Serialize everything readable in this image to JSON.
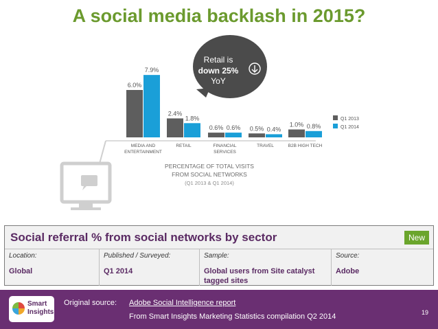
{
  "title": "A social media backlash in 2015?",
  "chart_data": {
    "type": "bar",
    "categories": [
      "MEDIA AND ENTERTAINMENT",
      "RETAIL",
      "FINANCIAL SERVICES",
      "TRAVEL",
      "B2B HIGH TECH"
    ],
    "category_labels": [
      [
        "MEDIA AND",
        "ENTERTAINMENT"
      ],
      [
        "RETAIL"
      ],
      [
        "FINANCIAL",
        "SERVICES"
      ],
      [
        "TRAVEL"
      ],
      [
        "B2B HIGH TECH"
      ]
    ],
    "series": [
      {
        "name": "Q1 2013",
        "values": [
          6.0,
          2.4,
          0.6,
          0.5,
          1.0
        ],
        "labels": [
          "6.0%",
          "2.4%",
          "0.6%",
          "0.5%",
          "1.0%"
        ],
        "color": "#5e5e5e"
      },
      {
        "name": "Q1 2014",
        "values": [
          7.9,
          1.8,
          0.6,
          0.4,
          0.8
        ],
        "labels": [
          "7.9%",
          "1.8%",
          "0.6%",
          "0.4%",
          "0.8%"
        ],
        "color": "#1a9fd8"
      }
    ],
    "ylim": [
      0,
      8
    ],
    "axis_title": [
      "PERCENTAGE OF TOTAL VISITS",
      "FROM SOCIAL NETWORKS",
      "(Q1 2013 & Q1 2014)"
    ],
    "legend": "right",
    "callout": {
      "lines": [
        "Retail is",
        "down 25%",
        "YoY"
      ]
    }
  },
  "panel": {
    "heading": "Social referral % from social networks by sector",
    "badge": "New",
    "columns": [
      {
        "label": "Location:",
        "value": "Global"
      },
      {
        "label": "Published / Surveyed:",
        "value": "Q1 2014"
      },
      {
        "label": "Sample:",
        "value": "Global users from Site catalyst tagged sites"
      },
      {
        "label": "Source:",
        "value": "Adobe"
      }
    ]
  },
  "footer": {
    "logo_text": [
      "Smart",
      "Insights"
    ],
    "source_label": "Original source:",
    "source_link": "Adobe Social Intelligence report",
    "source_note": "From Smart Insights Marketing Statistics compilation Q2 2014",
    "page_number": "19"
  },
  "colors": {
    "title": "#6b9a2e",
    "accent": "#6a2f72",
    "q2013": "#5e5e5e",
    "q2014": "#1a9fd8",
    "badge": "#6aa52c"
  }
}
